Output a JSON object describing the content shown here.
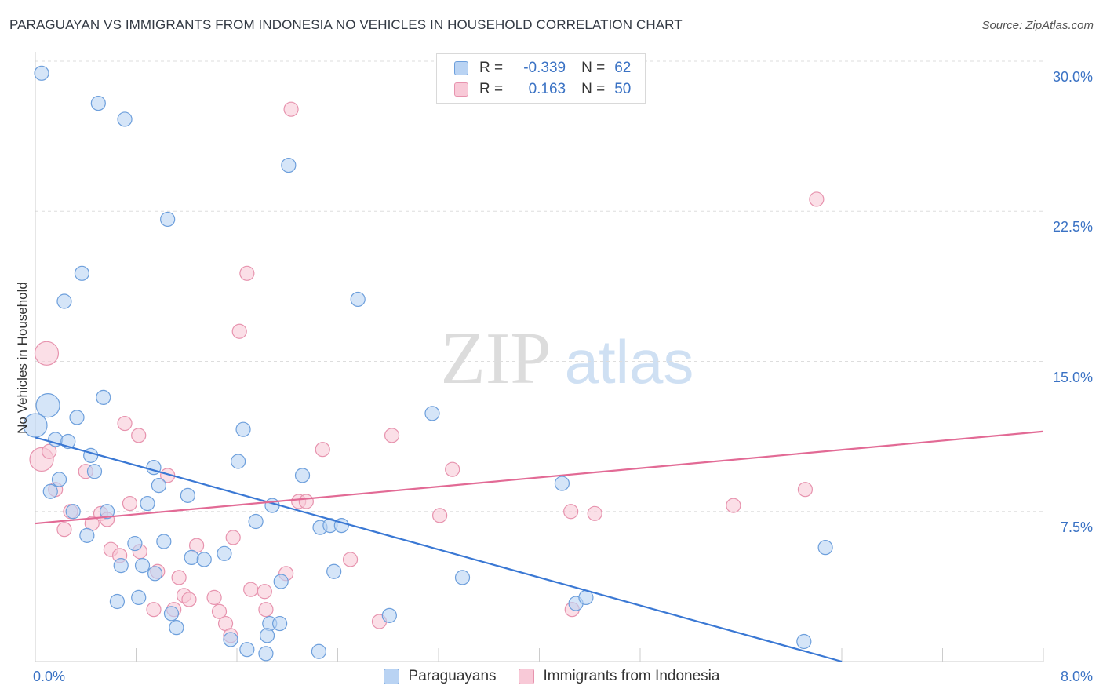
{
  "title": "PARAGUAYAN VS IMMIGRANTS FROM INDONESIA NO VEHICLES IN HOUSEHOLD CORRELATION CHART",
  "source": "Source: ZipAtlas.com",
  "watermark": {
    "zip": "ZIP",
    "atlas": "atlas"
  },
  "legend": {
    "rows": [
      {
        "r_label": "R =",
        "r_value": "-0.339",
        "n_label": "N =",
        "n_value": "62",
        "color": "#aac8ee",
        "border": "#6a9bd8"
      },
      {
        "r_label": "R =",
        "r_value": "0.163",
        "n_label": "N =",
        "n_value": "50",
        "color": "#f7c3d2",
        "border": "#e48aa8"
      }
    ]
  },
  "bottom_legend": [
    {
      "label": "Paraguayans",
      "color": "#aac8ee",
      "border": "#6a9bd8"
    },
    {
      "label": "Immigrants from Indonesia",
      "color": "#f7c3d2",
      "border": "#e48aa8"
    }
  ],
  "chart_data": {
    "type": "scatter",
    "title": "PARAGUAYAN VS IMMIGRANTS FROM INDONESIA NO VEHICLES IN HOUSEHOLD CORRELATION CHART",
    "xlabel": "",
    "ylabel": "No Vehicles in Household",
    "xlim": [
      0,
      8
    ],
    "ylim": [
      0,
      30
    ],
    "x_tick_labels": {
      "min": "0.0%",
      "max": "8.0%"
    },
    "y_ticks": [
      7.5,
      15.0,
      22.5,
      30.0
    ],
    "y_tick_labels": [
      "7.5%",
      "15.0%",
      "22.5%",
      "30.0%"
    ],
    "grid": "horizontal dashed",
    "colors": {
      "paraguayans": "#3a78d4",
      "indonesia": "#e26a95"
    },
    "series": [
      {
        "name": "Paraguayans",
        "fill": "#b9d3f3",
        "stroke": "#6d9fdc",
        "trend": {
          "x0": 0.0,
          "y0": 11.2,
          "x1": 6.4,
          "y1": 0.0
        },
        "points": [
          [
            0.05,
            29.4
          ],
          [
            0.5,
            27.9
          ],
          [
            0.71,
            27.1
          ],
          [
            2.01,
            24.8
          ],
          [
            1.05,
            22.1
          ],
          [
            0.37,
            19.4
          ],
          [
            0.23,
            18.0
          ],
          [
            2.56,
            18.1
          ],
          [
            0.1,
            12.8
          ],
          [
            0.33,
            12.2
          ],
          [
            0.54,
            13.2
          ],
          [
            3.15,
            12.4
          ],
          [
            0.0,
            11.8
          ],
          [
            0.16,
            11.1
          ],
          [
            0.26,
            11.0
          ],
          [
            1.65,
            11.6
          ],
          [
            0.44,
            10.3
          ],
          [
            0.19,
            9.1
          ],
          [
            0.47,
            9.5
          ],
          [
            0.94,
            9.7
          ],
          [
            1.61,
            10.0
          ],
          [
            2.12,
            9.3
          ],
          [
            0.12,
            8.5
          ],
          [
            0.98,
            8.8
          ],
          [
            0.3,
            7.5
          ],
          [
            0.57,
            7.5
          ],
          [
            0.89,
            7.9
          ],
          [
            1.21,
            8.3
          ],
          [
            1.88,
            7.8
          ],
          [
            1.75,
            7.0
          ],
          [
            2.26,
            6.7
          ],
          [
            2.34,
            6.8
          ],
          [
            2.43,
            6.8
          ],
          [
            4.18,
            8.9
          ],
          [
            0.41,
            6.3
          ],
          [
            0.79,
            5.9
          ],
          [
            1.02,
            6.0
          ],
          [
            1.5,
            5.4
          ],
          [
            1.24,
            5.2
          ],
          [
            1.34,
            5.1
          ],
          [
            0.68,
            4.8
          ],
          [
            0.85,
            4.8
          ],
          [
            0.95,
            4.4
          ],
          [
            2.37,
            4.5
          ],
          [
            3.39,
            4.2
          ],
          [
            1.95,
            4.0
          ],
          [
            0.65,
            3.0
          ],
          [
            0.82,
            3.2
          ],
          [
            1.08,
            2.4
          ],
          [
            1.12,
            1.7
          ],
          [
            2.81,
            2.3
          ],
          [
            4.29,
            2.9
          ],
          [
            4.37,
            3.2
          ],
          [
            1.86,
            1.9
          ],
          [
            1.94,
            1.9
          ],
          [
            1.55,
            1.1
          ],
          [
            1.68,
            0.6
          ],
          [
            1.84,
            1.3
          ],
          [
            1.83,
            0.4
          ],
          [
            2.25,
            0.5
          ],
          [
            6.1,
            1.0
          ],
          [
            6.27,
            5.7
          ]
        ]
      },
      {
        "name": "Immigrants from Indonesia",
        "fill": "#f8c9d7",
        "stroke": "#e793ae",
        "trend": {
          "x0": 0.0,
          "y0": 6.9,
          "x1": 8.0,
          "y1": 11.5
        },
        "points": [
          [
            2.03,
            27.6
          ],
          [
            6.2,
            23.1
          ],
          [
            1.68,
            19.4
          ],
          [
            1.62,
            16.5
          ],
          [
            0.09,
            15.4
          ],
          [
            0.71,
            11.9
          ],
          [
            0.82,
            11.3
          ],
          [
            2.83,
            11.3
          ],
          [
            2.28,
            10.6
          ],
          [
            0.05,
            10.1
          ],
          [
            0.11,
            10.5
          ],
          [
            0.4,
            9.5
          ],
          [
            1.05,
            9.3
          ],
          [
            3.31,
            9.6
          ],
          [
            0.16,
            8.6
          ],
          [
            0.75,
            7.9
          ],
          [
            2.09,
            8.0
          ],
          [
            2.15,
            8.0
          ],
          [
            4.25,
            7.5
          ],
          [
            4.44,
            7.4
          ],
          [
            5.54,
            7.8
          ],
          [
            6.11,
            8.6
          ],
          [
            0.28,
            7.5
          ],
          [
            0.52,
            7.4
          ],
          [
            0.57,
            7.1
          ],
          [
            0.45,
            6.9
          ],
          [
            3.21,
            7.3
          ],
          [
            0.23,
            6.6
          ],
          [
            1.57,
            6.2
          ],
          [
            1.28,
            5.8
          ],
          [
            0.6,
            5.6
          ],
          [
            0.67,
            5.3
          ],
          [
            0.83,
            5.5
          ],
          [
            2.5,
            5.1
          ],
          [
            0.97,
            4.5
          ],
          [
            1.14,
            4.2
          ],
          [
            1.99,
            4.4
          ],
          [
            1.71,
            3.6
          ],
          [
            1.82,
            3.5
          ],
          [
            1.18,
            3.3
          ],
          [
            1.22,
            3.1
          ],
          [
            1.42,
            3.2
          ],
          [
            0.94,
            2.6
          ],
          [
            1.1,
            2.6
          ],
          [
            1.46,
            2.5
          ],
          [
            1.83,
            2.6
          ],
          [
            1.51,
            1.9
          ],
          [
            2.73,
            2.0
          ],
          [
            4.26,
            2.6
          ],
          [
            1.55,
            1.3
          ]
        ]
      }
    ]
  }
}
